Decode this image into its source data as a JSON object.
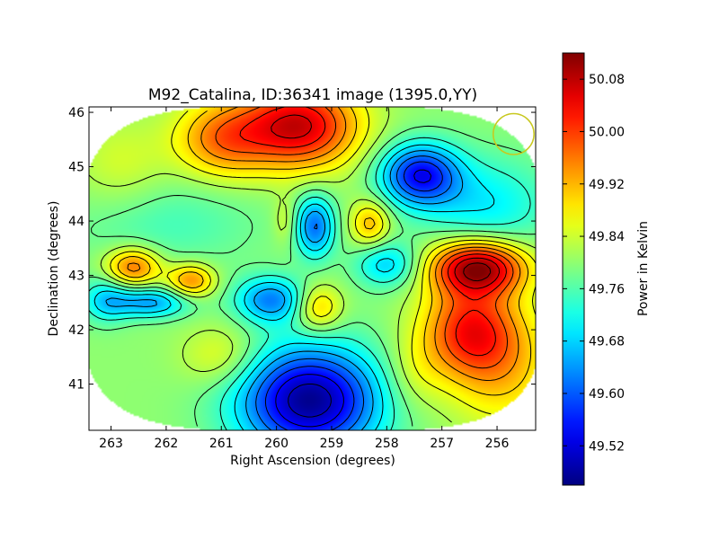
{
  "chart_data": {
    "type": "heatmap",
    "title": "M92_Catalina, ID:36341 image (1395.0,YY)",
    "xlabel": "Right Ascension (degrees)",
    "ylabel": "Declination (degrees)",
    "xlim": [
      263.4,
      255.3
    ],
    "ylim": [
      40.15,
      46.1
    ],
    "x_ticks": [
      263,
      262,
      261,
      260,
      259,
      258,
      257,
      256
    ],
    "y_ticks": [
      41,
      42,
      43,
      44,
      45,
      46
    ],
    "x_tick_labels": [
      "263",
      "262",
      "261",
      "260",
      "259",
      "258",
      "257",
      "256"
    ],
    "y_tick_labels": [
      "41",
      "42",
      "43",
      "44",
      "45",
      "46"
    ],
    "colorbar": {
      "label": "Power in Kelvin",
      "range": [
        49.46,
        50.12
      ],
      "ticks": [
        49.52,
        49.6,
        49.68,
        49.76,
        49.84,
        49.92,
        50.0,
        50.08
      ],
      "tick_labels": [
        "49.52",
        "49.60",
        "49.68",
        "49.76",
        "49.84",
        "49.92",
        "50.00",
        "50.08"
      ]
    },
    "baseline": 49.8,
    "features": [
      {
        "ra": 259.6,
        "dec": 45.75,
        "amp": 0.27,
        "sra": 0.75,
        "sdec": 0.55
      },
      {
        "ra": 261.0,
        "dec": 45.5,
        "amp": 0.15,
        "sra": 0.6,
        "sdec": 0.5
      },
      {
        "ra": 259.4,
        "dec": 40.7,
        "amp": -0.33,
        "sra": 0.9,
        "sdec": 0.7
      },
      {
        "ra": 256.35,
        "dec": 43.15,
        "amp": 0.3,
        "sra": 0.6,
        "sdec": 0.35
      },
      {
        "ra": 256.5,
        "dec": 42.0,
        "amp": 0.2,
        "sra": 0.6,
        "sdec": 0.6
      },
      {
        "ra": 255.9,
        "dec": 41.3,
        "amp": 0.1,
        "sra": 0.7,
        "sdec": 0.8
      },
      {
        "ra": 257.4,
        "dec": 44.85,
        "amp": -0.25,
        "sra": 0.5,
        "sdec": 0.4
      },
      {
        "ra": 256.2,
        "dec": 44.3,
        "amp": -0.1,
        "sra": 0.8,
        "sdec": 0.6
      },
      {
        "ra": 259.3,
        "dec": 43.9,
        "amp": -0.18,
        "sra": 0.25,
        "sdec": 0.4
      },
      {
        "ra": 258.3,
        "dec": 43.95,
        "amp": 0.12,
        "sra": 0.25,
        "sdec": 0.3
      },
      {
        "ra": 259.85,
        "dec": 44.0,
        "amp": 0.05,
        "sra": 0.15,
        "sdec": 0.3
      },
      {
        "ra": 258.0,
        "dec": 43.2,
        "amp": -0.12,
        "sra": 0.4,
        "sdec": 0.3
      },
      {
        "ra": 259.25,
        "dec": 42.4,
        "amp": 0.12,
        "sra": 0.3,
        "sdec": 0.3
      },
      {
        "ra": 260.1,
        "dec": 42.55,
        "amp": -0.17,
        "sra": 0.45,
        "sdec": 0.3
      },
      {
        "ra": 262.6,
        "dec": 43.15,
        "amp": 0.17,
        "sra": 0.35,
        "sdec": 0.25
      },
      {
        "ra": 261.55,
        "dec": 42.9,
        "amp": 0.15,
        "sra": 0.3,
        "sdec": 0.22
      },
      {
        "ra": 262.3,
        "dec": 42.5,
        "amp": -0.15,
        "sra": 0.5,
        "sdec": 0.2
      },
      {
        "ra": 263.1,
        "dec": 42.55,
        "amp": -0.1,
        "sra": 0.3,
        "sdec": 0.3
      },
      {
        "ra": 262.0,
        "dec": 44.0,
        "amp": -0.05,
        "sra": 1.2,
        "sdec": 0.6
      },
      {
        "ra": 262.8,
        "dec": 45.0,
        "amp": 0.05,
        "sra": 0.6,
        "sdec": 0.6
      },
      {
        "ra": 261.0,
        "dec": 41.5,
        "amp": 0.07,
        "sra": 0.5,
        "sdec": 0.4
      },
      {
        "ra": 257.5,
        "dec": 41.2,
        "amp": 0.05,
        "sra": 0.4,
        "sdec": 0.5
      }
    ],
    "contour_levels": [
      49.5,
      49.54,
      49.58,
      49.62,
      49.66,
      49.7,
      49.74,
      49.78,
      49.82,
      49.86,
      49.9,
      49.94,
      49.98,
      50.02,
      50.06,
      50.1
    ],
    "beam_marker": {
      "ra": 255.7,
      "dec": 45.6,
      "radius_deg": 0.37,
      "color": "#c8c81e"
    },
    "mask_half_width_deg": 4.2
  }
}
